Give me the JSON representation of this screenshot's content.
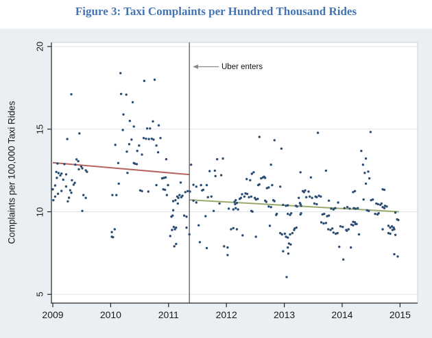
{
  "page": {
    "title": "Figure 3: Taxi Complaints per Hundred Thousand Rides",
    "title_color": "#4274b4"
  },
  "chart_data": {
    "type": "scatter",
    "title": "Figure 3: Taxi Complaints per Hundred Thousand Rides",
    "xlabel": "",
    "ylabel": "Complaints per 100,000 Taxi Rides",
    "xlim": [
      2008.98,
      2015.3
    ],
    "ylim": [
      4.5,
      20.25
    ],
    "xticks": [
      2009,
      2010,
      2011,
      2012,
      2013,
      2014,
      2015
    ],
    "yticks": [
      5,
      10,
      15,
      20
    ],
    "grid": true,
    "legend": "none",
    "vline": {
      "x": 2011.36,
      "label": "Uber entry date",
      "color": "#4d4d4d"
    },
    "annotation": {
      "text": "Uber enters",
      "arrow": "points-left-to-vline"
    },
    "colors": {
      "dots": "#2b4d72",
      "pre_trend": "#b5645f",
      "post_trend": "#9aaa6d",
      "panel_bg": "#e9eff3",
      "plot_bg": "#ffffff",
      "grid": "#dde6ee",
      "axis": "#222222",
      "arrow": "#8a8a8a"
    },
    "trend_lines": [
      {
        "name": "pre-uber-fit",
        "x": [
          2009.0,
          2011.36
        ],
        "y": [
          12.97,
          12.25
        ],
        "color": "#b5645f"
      },
      {
        "name": "post-uber-fit",
        "x": [
          2011.36,
          2014.98
        ],
        "y": [
          10.72,
          10.0
        ],
        "color": "#9aaa6d"
      }
    ],
    "points": [
      [
        2009.32,
        17.11
      ],
      [
        2009.46,
        14.74
      ],
      [
        2009.25,
        14.4
      ],
      [
        2009.41,
        13.17
      ],
      [
        2009.44,
        13.06
      ],
      [
        2009.08,
        12.92
      ],
      [
        2009.2,
        12.88
      ],
      [
        2009.39,
        12.85
      ],
      [
        2009.49,
        12.74
      ],
      [
        2009.51,
        12.63
      ],
      [
        2009.45,
        12.57
      ],
      [
        2009.57,
        12.51
      ],
      [
        2009.59,
        12.42
      ],
      [
        2009.06,
        12.41
      ],
      [
        2009.1,
        12.34
      ],
      [
        2009.15,
        12.31
      ],
      [
        2009.13,
        12.2
      ],
      [
        2009.23,
        12.26
      ],
      [
        2009.07,
        12.05
      ],
      [
        2009.18,
        11.94
      ],
      [
        2009.33,
        11.91
      ],
      [
        2009.38,
        11.75
      ],
      [
        2009.36,
        11.64
      ],
      [
        2009.04,
        11.59
      ],
      [
        2009.23,
        11.53
      ],
      [
        2009.0,
        11.36
      ],
      [
        2009.15,
        11.26
      ],
      [
        2009.3,
        11.3
      ],
      [
        2009.32,
        11.15
      ],
      [
        2009.09,
        11.09
      ],
      [
        2009.04,
        10.92
      ],
      [
        2009.28,
        10.85
      ],
      [
        2009.53,
        11.01
      ],
      [
        2009.57,
        10.84
      ],
      [
        2009.01,
        10.7
      ],
      [
        2009.26,
        10.63
      ],
      [
        2009.51,
        10.05
      ],
      [
        2010.17,
        18.39
      ],
      [
        2010.58,
        17.92
      ],
      [
        2010.76,
        17.99
      ],
      [
        2010.18,
        17.13
      ],
      [
        2010.27,
        17.09
      ],
      [
        2010.38,
        16.63
      ],
      [
        2010.22,
        15.89
      ],
      [
        2010.33,
        15.5
      ],
      [
        2010.4,
        15.16
      ],
      [
        2010.73,
        15.47
      ],
      [
        2010.83,
        15.23
      ],
      [
        2010.21,
        14.95
      ],
      [
        2010.63,
        15.04
      ],
      [
        2010.68,
        15.04
      ],
      [
        2010.57,
        14.46
      ],
      [
        2010.61,
        14.42
      ],
      [
        2010.66,
        14.4
      ],
      [
        2010.71,
        14.42
      ],
      [
        2010.74,
        14.37
      ],
      [
        2010.36,
        14.37
      ],
      [
        2010.86,
        14.46
      ],
      [
        2010.08,
        14.05
      ],
      [
        2010.32,
        14.09
      ],
      [
        2010.49,
        14.01
      ],
      [
        2010.79,
        14.01
      ],
      [
        2010.28,
        13.64
      ],
      [
        2010.46,
        13.68
      ],
      [
        2010.54,
        13.46
      ],
      [
        2010.82,
        13.6
      ],
      [
        2010.13,
        12.95
      ],
      [
        2010.4,
        12.95
      ],
      [
        2010.42,
        12.91
      ],
      [
        2010.45,
        12.88
      ],
      [
        2010.96,
        13.18
      ],
      [
        2010.29,
        12.35
      ],
      [
        2010.14,
        11.7
      ],
      [
        2010.03,
        11.01
      ],
      [
        2010.1,
        11.01
      ],
      [
        2010.51,
        11.29
      ],
      [
        2010.54,
        11.25
      ],
      [
        2010.65,
        11.22
      ],
      [
        2010.89,
        12.02
      ],
      [
        2010.92,
        12.05
      ],
      [
        2010.95,
        12.08
      ],
      [
        2010.79,
        11.61
      ],
      [
        2010.99,
        11.61
      ],
      [
        2010.91,
        11.36
      ],
      [
        2010.94,
        11.33
      ],
      [
        2010.97,
        11.01
      ],
      [
        2011.16,
        10.5
      ],
      [
        2011.08,
        10.09
      ],
      [
        2011.05,
        9.7
      ],
      [
        2011.07,
        9.77
      ],
      [
        2010.07,
        8.94
      ],
      [
        2010.02,
        8.49
      ],
      [
        2010.04,
        8.46
      ],
      [
        2011.06,
        8.9
      ],
      [
        2011.11,
        8.94
      ],
      [
        2011.03,
        8.53
      ],
      [
        2011.1,
        7.91
      ],
      [
        2010.02,
        8.77
      ],
      [
        2011.84,
        13.18
      ],
      [
        2011.94,
        13.22
      ],
      [
        2011.39,
        12.85
      ],
      [
        2011.71,
        12.46
      ],
      [
        2011.8,
        12.49
      ],
      [
        2011.91,
        12.21
      ],
      [
        2011.81,
        12.16
      ],
      [
        2011.21,
        11.77
      ],
      [
        2011.43,
        11.63
      ],
      [
        2011.56,
        11.61
      ],
      [
        2011.66,
        11.61
      ],
      [
        2011.48,
        11.52
      ],
      [
        2011.33,
        11.25
      ],
      [
        2011.37,
        11.22
      ],
      [
        2011.29,
        11.19
      ],
      [
        2011.58,
        11.29
      ],
      [
        2011.6,
        11.33
      ],
      [
        2011.19,
        11.01
      ],
      [
        2011.24,
        10.97
      ],
      [
        2011.15,
        10.92
      ],
      [
        2011.17,
        10.84
      ],
      [
        2011.22,
        10.88
      ],
      [
        2011.74,
        10.92
      ],
      [
        2011.68,
        10.88
      ],
      [
        2011.08,
        10.64
      ],
      [
        2011.12,
        10.7
      ],
      [
        2011.43,
        10.67
      ],
      [
        2011.48,
        10.56
      ],
      [
        2011.88,
        10.5
      ],
      [
        2012.04,
        10.19
      ],
      [
        2012.12,
        10.14
      ],
      [
        2012.16,
        10.22
      ],
      [
        2012.2,
        10.14
      ],
      [
        2011.78,
        10.05
      ],
      [
        2011.64,
        9.73
      ],
      [
        2011.27,
        9.77
      ],
      [
        2011.31,
        9.7
      ],
      [
        2011.09,
        9.08
      ],
      [
        2011.13,
        9.04
      ],
      [
        2011.31,
        9.04
      ],
      [
        2011.36,
        8.63
      ],
      [
        2011.52,
        9.18
      ],
      [
        2011.54,
        8.16
      ],
      [
        2011.13,
        8.05
      ],
      [
        2011.66,
        7.8
      ],
      [
        2011.96,
        7.91
      ],
      [
        2012.02,
        7.84
      ],
      [
        2012.08,
        8.94
      ],
      [
        2012.12,
        9.01
      ],
      [
        2012.18,
        8.94
      ],
      [
        2012.02,
        7.38
      ],
      [
        2012.57,
        14.53
      ],
      [
        2012.83,
        14.33
      ],
      [
        2012.95,
        13.82
      ],
      [
        2012.77,
        12.85
      ],
      [
        2012.47,
        12.39
      ],
      [
        2012.44,
        12.3
      ],
      [
        2012.63,
        12.08
      ],
      [
        2012.65,
        12.12
      ],
      [
        2012.6,
        12.02
      ],
      [
        2012.67,
        12.05
      ],
      [
        2012.57,
        11.66
      ],
      [
        2012.55,
        11.61
      ],
      [
        2012.73,
        11.47
      ],
      [
        2012.7,
        11.43
      ],
      [
        2012.79,
        11.61
      ],
      [
        2012.93,
        11.52
      ],
      [
        2012.35,
        11.98
      ],
      [
        2012.41,
        11.91
      ],
      [
        2012.27,
        11.06
      ],
      [
        2012.33,
        11.11
      ],
      [
        2012.36,
        11.08
      ],
      [
        2012.31,
        10.92
      ],
      [
        2012.25,
        10.84
      ],
      [
        2012.39,
        10.88
      ],
      [
        2012.43,
        10.92
      ],
      [
        2012.23,
        10.78
      ],
      [
        2012.16,
        10.7
      ],
      [
        2012.14,
        10.6
      ],
      [
        2012.18,
        10.53
      ],
      [
        2012.15,
        10.46
      ],
      [
        2012.49,
        10.84
      ],
      [
        2012.51,
        10.74
      ],
      [
        2012.54,
        10.78
      ],
      [
        2012.67,
        10.67
      ],
      [
        2012.69,
        10.6
      ],
      [
        2012.81,
        10.7
      ],
      [
        2012.83,
        10.64
      ],
      [
        2012.73,
        10.32
      ],
      [
        2012.77,
        10.28
      ],
      [
        2012.98,
        10.42
      ],
      [
        2013.03,
        10.36
      ],
      [
        2013.06,
        10.39
      ],
      [
        2013.27,
        10.53
      ],
      [
        2013.28,
        10.46
      ],
      [
        2013.29,
        10.36
      ],
      [
        2012.43,
        10.05
      ],
      [
        2012.45,
        10.01
      ],
      [
        2012.86,
        9.81
      ],
      [
        2012.87,
        9.87
      ],
      [
        2013.06,
        9.87
      ],
      [
        2013.1,
        9.81
      ],
      [
        2013.12,
        9.91
      ],
      [
        2013.28,
        9.84
      ],
      [
        2013.29,
        9.91
      ],
      [
        2012.75,
        9.15
      ],
      [
        2012.51,
        8.49
      ],
      [
        2012.28,
        8.57
      ],
      [
        2012.93,
        8.71
      ],
      [
        2012.96,
        8.63
      ],
      [
        2013.01,
        8.67
      ],
      [
        2013.03,
        8.49
      ],
      [
        2013.06,
        8.44
      ],
      [
        2013.1,
        8.63
      ],
      [
        2013.14,
        8.71
      ],
      [
        2013.18,
        8.99
      ],
      [
        2013.21,
        9.04
      ],
      [
        2013.08,
        8.08
      ],
      [
        2013.11,
        8.02
      ],
      [
        2013.06,
        7.84
      ],
      [
        2012.98,
        7.61
      ],
      [
        2013.07,
        7.47
      ],
      [
        2013.17,
        8.9
      ],
      [
        2013.04,
        6.05
      ],
      [
        2013.58,
        14.78
      ],
      [
        2013.28,
        12.39
      ],
      [
        2013.72,
        12.49
      ],
      [
        2013.46,
        12.08
      ],
      [
        2013.32,
        11.25
      ],
      [
        2013.36,
        11.29
      ],
      [
        2013.34,
        11.19
      ],
      [
        2013.42,
        11.22
      ],
      [
        2013.44,
        10.92
      ],
      [
        2013.38,
        10.88
      ],
      [
        2013.48,
        10.84
      ],
      [
        2013.25,
        10.84
      ],
      [
        2013.22,
        10.32
      ],
      [
        2013.2,
        10.36
      ],
      [
        2013.54,
        10.92
      ],
      [
        2013.56,
        10.88
      ],
      [
        2013.6,
        10.97
      ],
      [
        2013.63,
        10.92
      ],
      [
        2013.52,
        10.5
      ],
      [
        2013.56,
        10.46
      ],
      [
        2013.77,
        10.67
      ],
      [
        2013.93,
        10.56
      ],
      [
        2013.81,
        10.19
      ],
      [
        2013.85,
        10.14
      ],
      [
        2013.88,
        10.22
      ],
      [
        2014.04,
        10.22
      ],
      [
        2014.09,
        10.28
      ],
      [
        2014.13,
        10.19
      ],
      [
        2013.66,
        9.84
      ],
      [
        2013.69,
        9.87
      ],
      [
        2013.74,
        9.73
      ],
      [
        2013.77,
        9.77
      ],
      [
        2013.64,
        9.36
      ],
      [
        2013.68,
        9.29
      ],
      [
        2013.72,
        9.32
      ],
      [
        2013.76,
        8.94
      ],
      [
        2013.8,
        8.9
      ],
      [
        2013.83,
        8.99
      ],
      [
        2013.85,
        8.74
      ],
      [
        2013.89,
        8.67
      ],
      [
        2013.92,
        8.71
      ],
      [
        2013.97,
        9.12
      ],
      [
        2014.01,
        9.08
      ],
      [
        2014.07,
        8.9
      ],
      [
        2014.08,
        8.85
      ],
      [
        2014.11,
        8.94
      ],
      [
        2014.16,
        9.22
      ],
      [
        2014.19,
        9.18
      ],
      [
        2014.23,
        9.26
      ],
      [
        2013.95,
        7.88
      ],
      [
        2014.15,
        7.84
      ],
      [
        2014.02,
        7.11
      ],
      [
        2014.49,
        14.83
      ],
      [
        2014.33,
        13.68
      ],
      [
        2014.41,
        13.22
      ],
      [
        2014.36,
        12.85
      ],
      [
        2014.45,
        12.43
      ],
      [
        2014.39,
        12.35
      ],
      [
        2014.47,
        12.02
      ],
      [
        2014.41,
        11.7
      ],
      [
        2014.7,
        11.36
      ],
      [
        2014.73,
        11.33
      ],
      [
        2014.19,
        11.19
      ],
      [
        2014.22,
        11.25
      ],
      [
        2014.37,
        10.74
      ],
      [
        2014.5,
        10.7
      ],
      [
        2014.53,
        10.74
      ],
      [
        2014.59,
        10.5
      ],
      [
        2014.62,
        10.46
      ],
      [
        2014.66,
        10.42
      ],
      [
        2014.68,
        10.5
      ],
      [
        2014.74,
        10.36
      ],
      [
        2014.77,
        10.32
      ],
      [
        2014.2,
        10.22
      ],
      [
        2014.23,
        10.19
      ],
      [
        2014.27,
        10.22
      ],
      [
        2014.43,
        10.09
      ],
      [
        2014.46,
        10.05
      ],
      [
        2014.57,
        9.87
      ],
      [
        2014.61,
        9.84
      ],
      [
        2014.63,
        9.91
      ],
      [
        2014.7,
        10.28
      ],
      [
        2014.73,
        10.22
      ],
      [
        2014.92,
        9.95
      ],
      [
        2014.95,
        9.54
      ],
      [
        2014.97,
        9.5
      ],
      [
        2014.19,
        9.39
      ],
      [
        2014.22,
        9.36
      ],
      [
        2014.25,
        9.26
      ],
      [
        2014.8,
        9.15
      ],
      [
        2014.83,
        9.04
      ],
      [
        2014.86,
        9.12
      ],
      [
        2014.89,
        9.04
      ],
      [
        2014.87,
        8.9
      ],
      [
        2014.9,
        8.94
      ],
      [
        2014.7,
        8.94
      ],
      [
        2014.29,
        8.63
      ],
      [
        2014.8,
        8.71
      ],
      [
        2014.83,
        8.67
      ],
      [
        2014.92,
        8.6
      ],
      [
        2014.9,
        7.43
      ],
      [
        2014.96,
        7.29
      ]
    ]
  }
}
